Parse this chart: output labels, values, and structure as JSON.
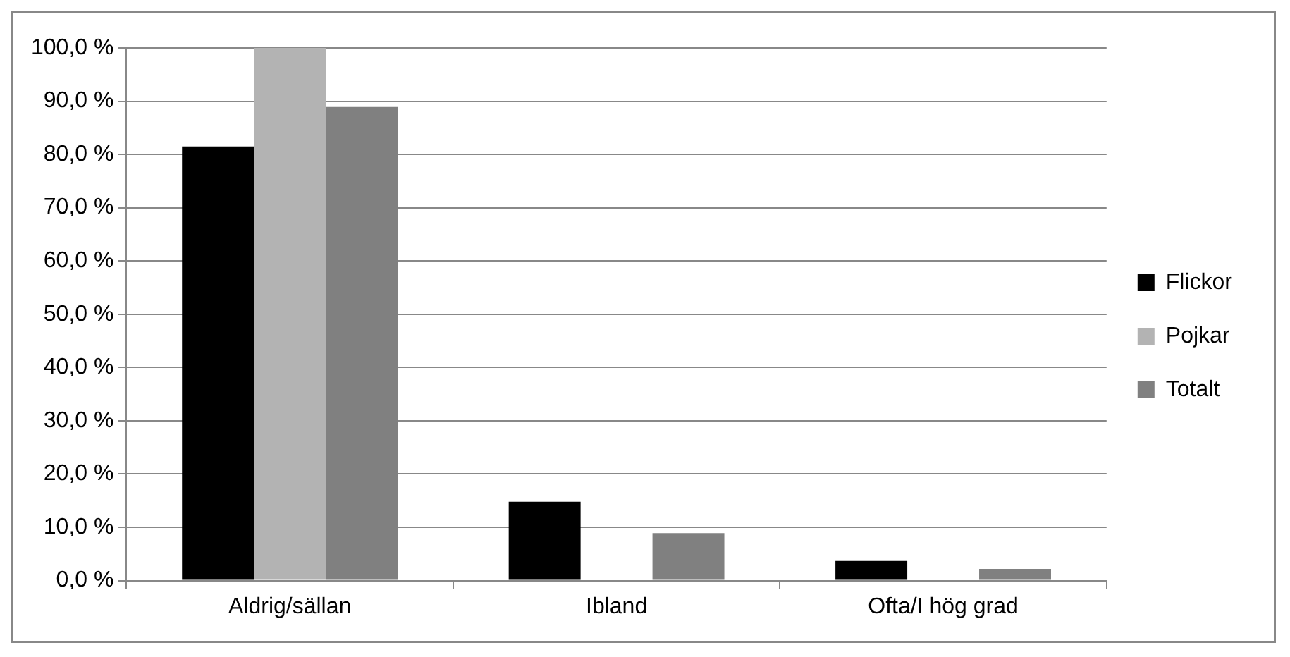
{
  "chart_data": {
    "type": "bar",
    "categories": [
      "Aldrig/sällan",
      "Ibland",
      "Ofta/I hög grad"
    ],
    "series": [
      {
        "name": "Flickor",
        "color": "#000000",
        "values": [
          81.5,
          14.8,
          3.7
        ]
      },
      {
        "name": "Pojkar",
        "color": "#b3b3b3",
        "values": [
          100,
          0,
          0
        ]
      },
      {
        "name": "Totalt",
        "color": "#808080",
        "values": [
          88.9,
          8.9,
          2.2
        ]
      }
    ],
    "ylim": [
      0,
      100
    ],
    "yticks": [
      {
        "value": 0,
        "label": "0,0 %"
      },
      {
        "value": 10,
        "label": "10,0 %"
      },
      {
        "value": 20,
        "label": "20,0 %"
      },
      {
        "value": 30,
        "label": "30,0 %"
      },
      {
        "value": 40,
        "label": "40,0 %"
      },
      {
        "value": 50,
        "label": "50,0 %"
      },
      {
        "value": 60,
        "label": "60,0 %"
      },
      {
        "value": 70,
        "label": "70,0 %"
      },
      {
        "value": 80,
        "label": "80,0 %"
      },
      {
        "value": 90,
        "label": "90,0 %"
      },
      {
        "value": 100,
        "label": "100,0 %"
      }
    ],
    "grid": "y",
    "legend": "right"
  }
}
